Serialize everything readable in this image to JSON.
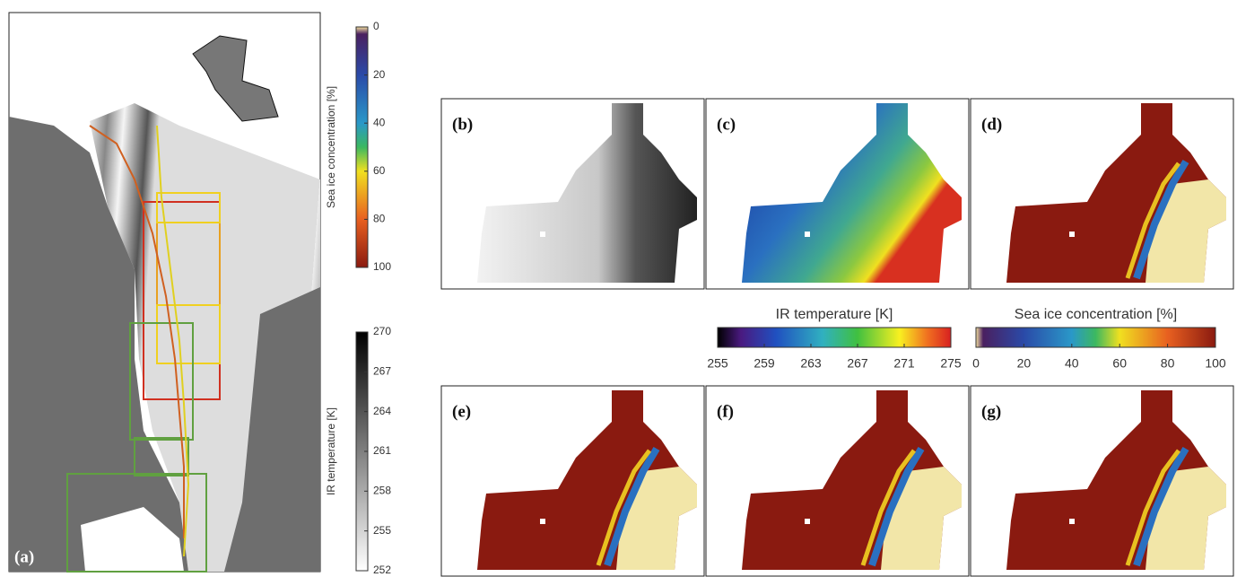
{
  "panel_labels": [
    "(a)",
    "(b)",
    "(c)",
    "(d)",
    "(e)",
    "(f)",
    "(g)"
  ],
  "colorbars": [
    {
      "title": "Sea ice concentration [%]",
      "ticks": [
        0,
        20,
        40,
        60,
        80,
        100
      ]
    },
    {
      "title": "IR temperature [K]",
      "ticks": [
        270,
        267,
        264,
        261,
        258,
        255,
        252
      ]
    },
    {
      "title": "IR temperature [K]",
      "ticks": [
        255,
        259,
        263,
        267,
        271,
        275
      ]
    },
    {
      "title": "Sea ice concentration [%]",
      "ticks": [
        0,
        20,
        40,
        60,
        80,
        100
      ]
    }
  ]
}
